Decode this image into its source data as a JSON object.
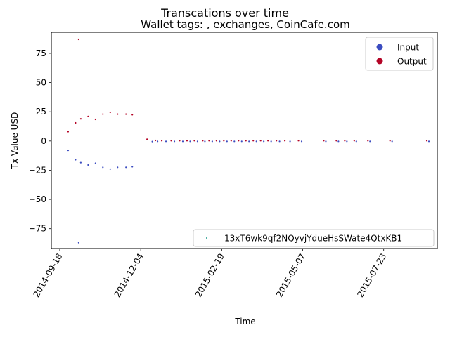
{
  "chart_data": {
    "type": "scatter",
    "title": "Transcations over time",
    "subtitle": "Wallet tags: , exchanges, CoinCafe.com",
    "xlabel": "Time",
    "ylabel": "Tx Value USD",
    "x_is_date": true,
    "xlim": [
      "2014-09-10",
      "2015-09-12"
    ],
    "ylim": [
      -92,
      93
    ],
    "xticks": [
      "2014-09-18",
      "2014-12-04",
      "2015-02-19",
      "2015-05-07",
      "2015-07-23"
    ],
    "yticks": [
      -75,
      -50,
      -25,
      0,
      25,
      50,
      75
    ],
    "grid": false,
    "legend_top_right": {
      "entries": [
        {
          "label": "Input",
          "color": "#3b4cc0"
        },
        {
          "label": "Output",
          "color": "#b40426"
        }
      ]
    },
    "legend_bottom_right": {
      "entries": [
        {
          "label": "13xT6wk9qf2NQyvjYdueHsSWate4QtxKB1",
          "color": "#1a9a8a"
        }
      ]
    },
    "series": [
      {
        "name": "Input",
        "color": "#3b4cc0",
        "points": [
          [
            "2014-09-26",
            -8
          ],
          [
            "2014-10-03",
            -16
          ],
          [
            "2014-10-06",
            -87
          ],
          [
            "2014-10-08",
            -18.5
          ],
          [
            "2014-10-15",
            -20.5
          ],
          [
            "2014-10-22",
            -19
          ],
          [
            "2014-10-29",
            -22.5
          ],
          [
            "2014-11-05",
            -24
          ],
          [
            "2014-11-12",
            -22.5
          ],
          [
            "2014-11-20",
            -22.5
          ],
          [
            "2014-11-26",
            -22
          ],
          [
            "2014-12-15",
            -0.5
          ],
          [
            "2014-12-20",
            -0.3
          ],
          [
            "2014-12-28",
            -0.3
          ],
          [
            "2015-01-05",
            -0.3
          ],
          [
            "2015-01-13",
            -0.3
          ],
          [
            "2015-01-20",
            -0.3
          ],
          [
            "2015-01-27",
            -0.3
          ],
          [
            "2015-02-03",
            -0.3
          ],
          [
            "2015-02-10",
            -0.3
          ],
          [
            "2015-02-17",
            -0.3
          ],
          [
            "2015-02-24",
            -0.3
          ],
          [
            "2015-03-03",
            -0.3
          ],
          [
            "2015-03-10",
            -0.3
          ],
          [
            "2015-03-17",
            -0.3
          ],
          [
            "2015-03-24",
            -0.3
          ],
          [
            "2015-03-31",
            -0.3
          ],
          [
            "2015-04-07",
            -0.3
          ],
          [
            "2015-04-15",
            -0.3
          ],
          [
            "2015-04-25",
            -0.3
          ],
          [
            "2015-05-06",
            -0.3
          ],
          [
            "2015-05-29",
            -0.3
          ],
          [
            "2015-06-10",
            -0.3
          ],
          [
            "2015-06-18",
            -0.3
          ],
          [
            "2015-06-27",
            -0.3
          ],
          [
            "2015-07-10",
            -0.3
          ],
          [
            "2015-07-31",
            -0.3
          ],
          [
            "2015-09-04",
            -0.3
          ]
        ]
      },
      {
        "name": "Output",
        "color": "#b40426",
        "points": [
          [
            "2014-09-26",
            8
          ],
          [
            "2014-10-03",
            15.5
          ],
          [
            "2014-10-06",
            87
          ],
          [
            "2014-10-08",
            19
          ],
          [
            "2014-10-15",
            21
          ],
          [
            "2014-10-22",
            18.5
          ],
          [
            "2014-10-29",
            23
          ],
          [
            "2014-11-05",
            24.5
          ],
          [
            "2014-11-12",
            23
          ],
          [
            "2014-11-20",
            23
          ],
          [
            "2014-11-26",
            22.5
          ],
          [
            "2014-12-10",
            1.5
          ],
          [
            "2014-12-18",
            0.5
          ],
          [
            "2014-12-24",
            0.3
          ],
          [
            "2015-01-02",
            0.3
          ],
          [
            "2015-01-10",
            0.3
          ],
          [
            "2015-01-17",
            0.3
          ],
          [
            "2015-01-24",
            0.3
          ],
          [
            "2015-02-01",
            0.3
          ],
          [
            "2015-02-07",
            0.3
          ],
          [
            "2015-02-14",
            0.3
          ],
          [
            "2015-02-21",
            0.3
          ],
          [
            "2015-02-28",
            0.3
          ],
          [
            "2015-03-07",
            0.3
          ],
          [
            "2015-03-14",
            0.3
          ],
          [
            "2015-03-21",
            0.3
          ],
          [
            "2015-03-28",
            0.3
          ],
          [
            "2015-04-04",
            0.3
          ],
          [
            "2015-04-12",
            0.3
          ],
          [
            "2015-04-20",
            0.3
          ],
          [
            "2015-05-03",
            0.3
          ],
          [
            "2015-05-27",
            0.3
          ],
          [
            "2015-06-08",
            0.3
          ],
          [
            "2015-06-16",
            0.3
          ],
          [
            "2015-06-25",
            0.3
          ],
          [
            "2015-07-08",
            0.3
          ],
          [
            "2015-07-29",
            0.3
          ],
          [
            "2015-09-02",
            0.3
          ]
        ]
      }
    ]
  }
}
